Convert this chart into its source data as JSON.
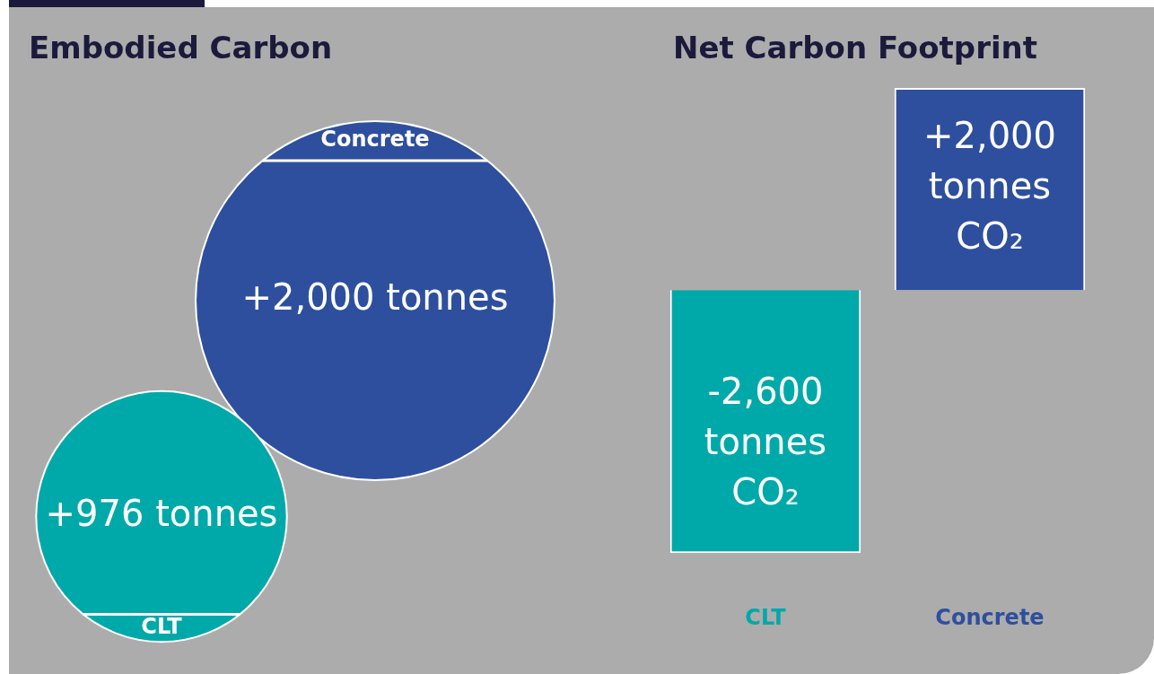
{
  "chart_data": [
    {
      "type": "other",
      "title": "Embodied Carbon",
      "categories": [
        "Concrete",
        "CLT"
      ],
      "values": [
        2000,
        976
      ],
      "colors": [
        "#2e4f9e",
        "#00a9a9"
      ],
      "value_labels": [
        "+2,000 tonnes",
        "+976 tonnes"
      ]
    },
    {
      "type": "bar",
      "title": "Net Carbon Footprint",
      "categories": [
        "CLT",
        "Concrete"
      ],
      "values": [
        -2600,
        2000
      ],
      "colors": [
        "#00a9a9",
        "#2e4f9e"
      ],
      "value_labels": [
        "-2,600 tonnes CO₂",
        "+2,000 tonnes CO₂"
      ],
      "tick_labels": "x"
    }
  ]
}
